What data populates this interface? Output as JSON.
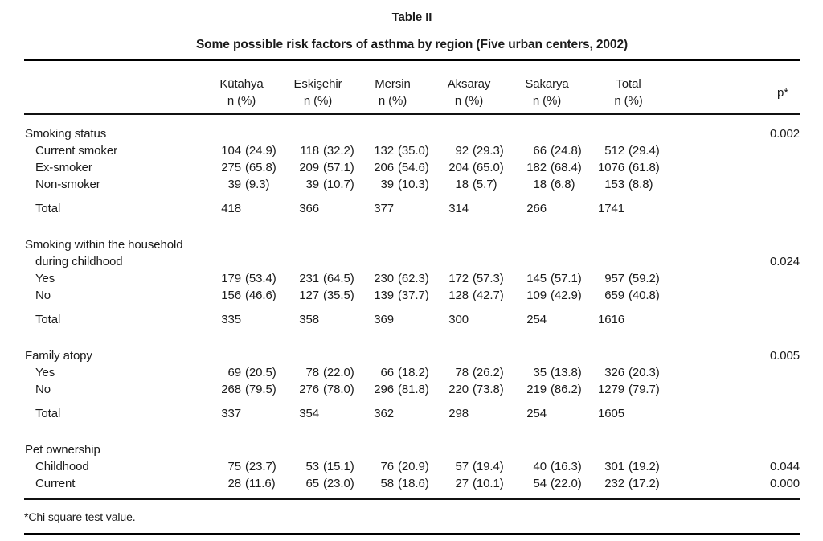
{
  "table": {
    "label": "Table II",
    "title": "Some possible risk factors of asthma by region (Five urban centers, 2002)",
    "columns": [
      "Kütahya",
      "Eskişehir",
      "Mersin",
      "Aksaray",
      "Sakarya",
      "Total"
    ],
    "column_subheader": "n (%)",
    "p_header": "p*",
    "footnote": "*Chi square test value.",
    "sections": [
      {
        "label_lines": [
          "Smoking status"
        ],
        "p": "0.002",
        "p_line": 0,
        "rows": [
          {
            "label": "Current smoker",
            "values": [
              "104 (24.9)",
              "118 (32.2)",
              "132 (35.0)",
              "92 (29.3)",
              "66 (24.8)",
              "512 (29.4)"
            ]
          },
          {
            "label": "Ex-smoker",
            "values": [
              "275 (65.8)",
              "209 (57.1)",
              "206 (54.6)",
              "204 (65.0)",
              "182 (68.4)",
              "1076 (61.8)"
            ]
          },
          {
            "label": "Non-smoker",
            "values": [
              "39 (9.3)",
              "39 (10.7)",
              "39 (10.3)",
              "18 (5.7)",
              "18 (6.8)",
              "153 (8.8)"
            ]
          }
        ],
        "total": {
          "label": "Total",
          "values": [
            "418",
            "366",
            "377",
            "314",
            "266",
            "1741"
          ]
        }
      },
      {
        "label_lines": [
          "Smoking within the household",
          "during childhood"
        ],
        "p": "0.024",
        "p_line": 1,
        "rows": [
          {
            "label": "Yes",
            "values": [
              "179 (53.4)",
              "231 (64.5)",
              "230 (62.3)",
              "172 (57.3)",
              "145 (57.1)",
              "957 (59.2)"
            ]
          },
          {
            "label": "No",
            "values": [
              "156 (46.6)",
              "127 (35.5)",
              "139 (37.7)",
              "128 (42.7)",
              "109 (42.9)",
              "659 (40.8)"
            ]
          }
        ],
        "total": {
          "label": "Total",
          "values": [
            "335",
            "358",
            "369",
            "300",
            "254",
            "1616"
          ]
        }
      },
      {
        "label_lines": [
          "Family atopy"
        ],
        "p": "0.005",
        "p_line": 0,
        "rows": [
          {
            "label": "Yes",
            "values": [
              "69 (20.5)",
              "78 (22.0)",
              "66 (18.2)",
              "78 (26.2)",
              "35 (13.8)",
              "326 (20.3)"
            ]
          },
          {
            "label": "No",
            "values": [
              "268 (79.5)",
              "276 (78.0)",
              "296 (81.8)",
              "220 (73.8)",
              "219 (86.2)",
              "1279 (79.7)"
            ]
          }
        ],
        "total": {
          "label": "Total",
          "values": [
            "337",
            "354",
            "362",
            "298",
            "254",
            "1605"
          ]
        }
      },
      {
        "label_lines": [
          "Pet ownership"
        ],
        "p": null,
        "p_line": null,
        "rows": [
          {
            "label": "Childhood",
            "values": [
              "75 (23.7)",
              "53 (15.1)",
              "76 (20.9)",
              "57 (19.4)",
              "40 (16.3)",
              "301 (19.2)"
            ],
            "p": "0.044"
          },
          {
            "label": "Current",
            "values": [
              "28 (11.6)",
              "65 (23.0)",
              "58 (18.6)",
              "27 (10.1)",
              "54 (22.0)",
              "232 (17.2)"
            ],
            "p": "0.000"
          }
        ],
        "total": null
      }
    ]
  }
}
